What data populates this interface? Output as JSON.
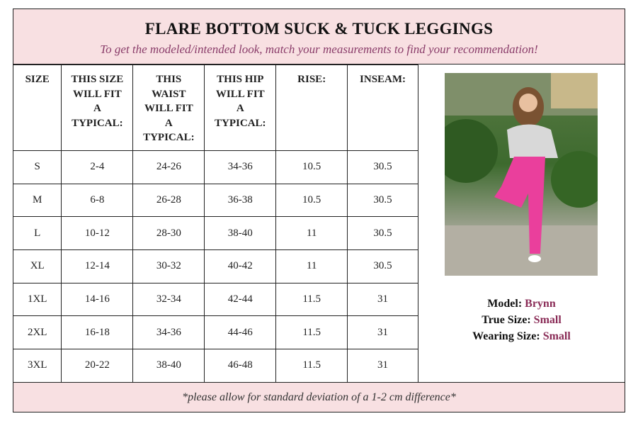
{
  "title": "FLARE BOTTOM SUCK & TUCK LEGGINGS",
  "subtitle": "To get the modeled/intended look, match your measurements to find your recommendation!",
  "columns": [
    "SIZE",
    "THIS SIZE WILL FIT A TYPICAL:",
    "THIS WAIST WILL FIT A TYPICAL:",
    "THIS HIP WILL FIT A TYPICAL:",
    "RISE:",
    "INSEAM:"
  ],
  "rows": [
    [
      "S",
      "2-4",
      "24-26",
      "34-36",
      "10.5",
      "30.5"
    ],
    [
      "M",
      "6-8",
      "26-28",
      "36-38",
      "10.5",
      "30.5"
    ],
    [
      "L",
      "10-12",
      "28-30",
      "38-40",
      "11",
      "30.5"
    ],
    [
      "XL",
      "12-14",
      "30-32",
      "40-42",
      "11",
      "30.5"
    ],
    [
      "1XL",
      "14-16",
      "32-34",
      "42-44",
      "11.5",
      "31"
    ],
    [
      "2XL",
      "16-18",
      "34-36",
      "44-46",
      "11.5",
      "31"
    ],
    [
      "3XL",
      "20-22",
      "38-40",
      "46-48",
      "11.5",
      "31"
    ]
  ],
  "model": {
    "name_label": "Model:",
    "name": "Brynn",
    "true_label": "True Size:",
    "true_size": "Small",
    "wearing_label": "Wearing Size:",
    "wearing_size": "Small"
  },
  "footer": "*please allow for standard deviation of a 1-2 cm difference*",
  "colors": {
    "header_bg": "#f8e0e2",
    "accent": "#8a2c57"
  }
}
